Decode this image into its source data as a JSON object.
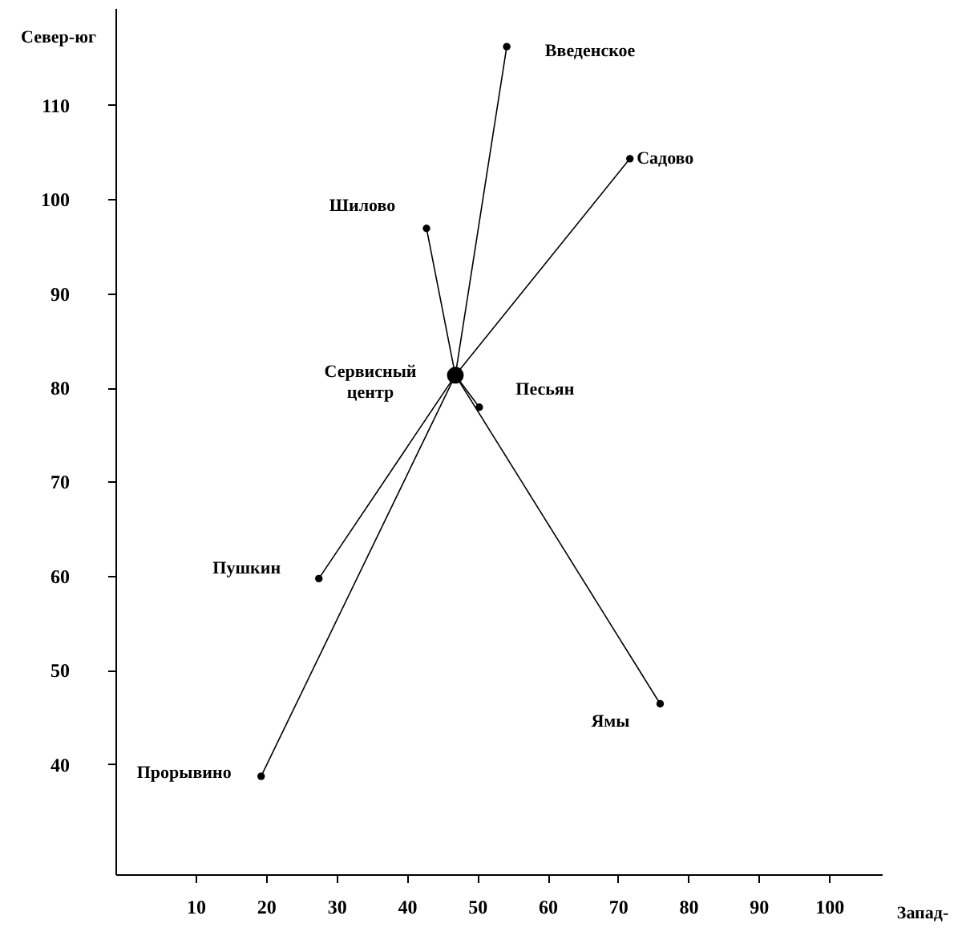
{
  "chart_data": {
    "type": "scatter",
    "xlabel": "Запад-",
    "ylabel": "Север-юг",
    "xlim": [
      -1.4,
      107.5
    ],
    "ylim": [
      28.3,
      120.3
    ],
    "xticks": [
      10,
      20,
      30,
      40,
      50,
      60,
      70,
      80,
      90,
      100
    ],
    "yticks": [
      40,
      50,
      60,
      70,
      80,
      90,
      100,
      110
    ],
    "grid": false,
    "marker": "circle",
    "series": [
      {
        "color": "#000000",
        "x": [
          46.9
        ],
        "values": [
          81.3
        ]
      },
      {
        "color": "#000000",
        "x": [
          54.2,
          71.7,
          42.8,
          50.3,
          27.5,
          19.3,
          76.0
        ],
        "values": [
          116.2,
          104.3,
          96.9,
          77.9,
          59.7,
          38.7,
          46.4
        ]
      },
      {
        "type": "line",
        "marker": "none",
        "color": "#000000",
        "x": [
          46.9,
          54.2
        ],
        "values": [
          81.3,
          116.2
        ]
      },
      {
        "type": "line",
        "marker": "none",
        "color": "#000000",
        "x": [
          46.9,
          71.7
        ],
        "values": [
          81.3,
          104.3
        ]
      },
      {
        "type": "line",
        "marker": "none",
        "color": "#000000",
        "x": [
          46.9,
          42.8
        ],
        "values": [
          81.3,
          96.9
        ]
      },
      {
        "type": "line",
        "marker": "none",
        "color": "#000000",
        "x": [
          46.9,
          50.3
        ],
        "values": [
          81.3,
          77.9
        ]
      },
      {
        "type": "line",
        "marker": "none",
        "color": "#000000",
        "x": [
          46.9,
          27.5
        ],
        "values": [
          81.3,
          59.7
        ]
      },
      {
        "type": "line",
        "marker": "none",
        "color": "#000000",
        "x": [
          46.9,
          19.3
        ],
        "values": [
          81.3,
          38.7
        ]
      },
      {
        "type": "line",
        "marker": "none",
        "color": "#000000",
        "x": [
          46.9,
          76.0
        ],
        "values": [
          81.3,
          46.4
        ]
      }
    ],
    "annotations": [
      {
        "text": "Введенское",
        "x": 54.2,
        "y": 116.2
      },
      {
        "text": "Садово",
        "x": 71.7,
        "y": 104.3
      },
      {
        "text": "Шилово",
        "x": 42.8,
        "y": 96.9
      },
      {
        "text": "Сервисный\nцентр",
        "x": 46.9,
        "y": 81.3
      },
      {
        "text": "Песьян",
        "x": 50.3,
        "y": 77.9
      },
      {
        "text": "Пушкин",
        "x": 27.5,
        "y": 59.7
      },
      {
        "text": "Прорывино",
        "x": 19.3,
        "y": 38.7
      },
      {
        "text": "Ямы",
        "x": 76.0,
        "y": 46.4
      }
    ]
  }
}
